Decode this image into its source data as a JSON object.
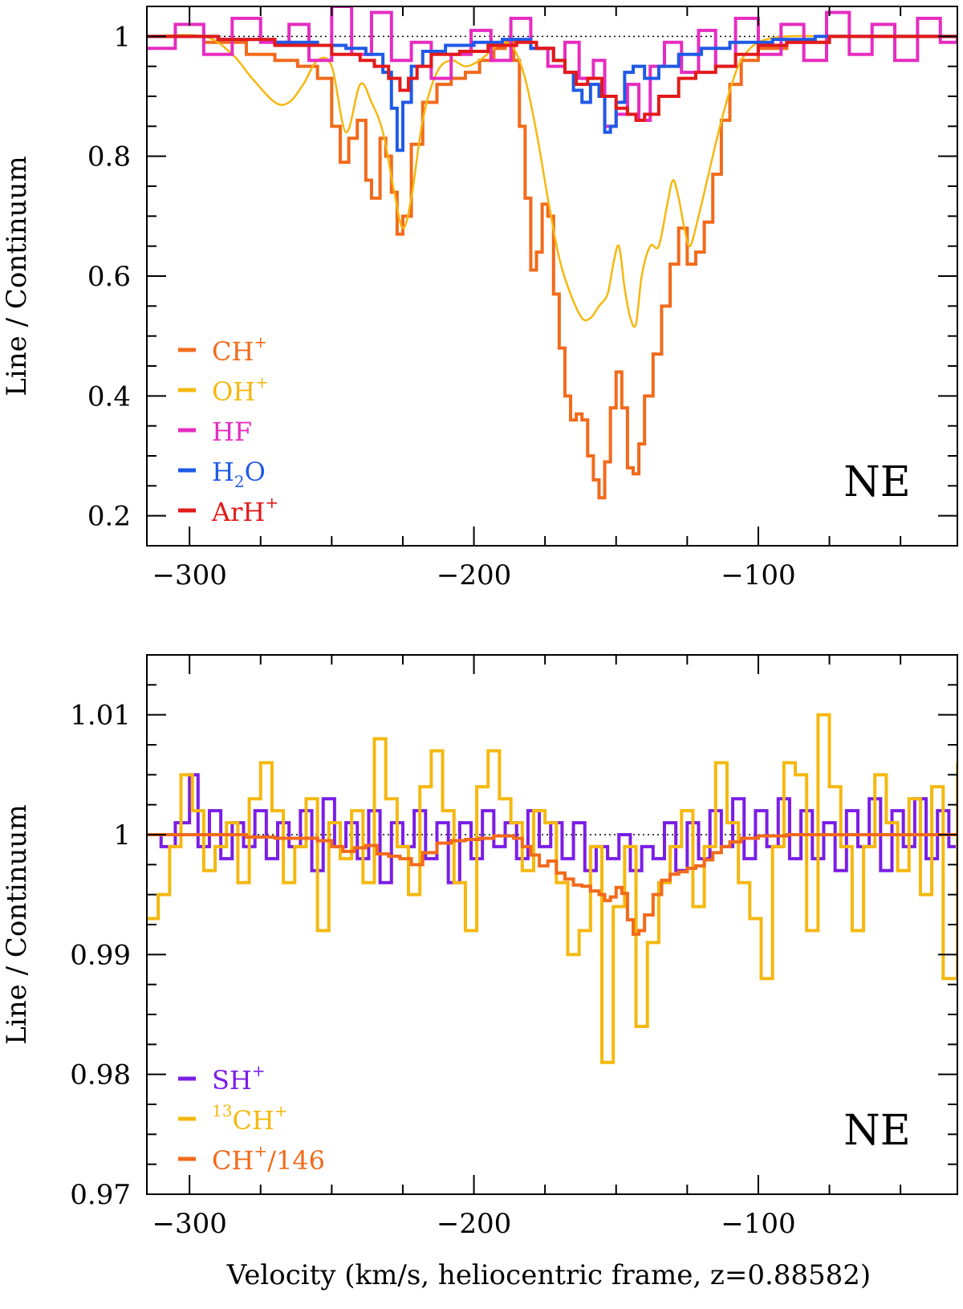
{
  "xlabel": "Velocity (km/s, heliocentric frame, z=0.88582)",
  "colors": {
    "ch_plus": "#f26a1b",
    "oh_plus": "#f5b80f",
    "hf": "#e62cc0",
    "h2o": "#1f5ae6",
    "arh_plus": "#e31a1a",
    "sh_plus": "#7a1ee6",
    "c13h_plus": "#f5b80f",
    "ch_plus_scaled": "#f26a1b",
    "axis": "#000000"
  },
  "chart_data": [
    {
      "type": "line",
      "panel": "top",
      "title": "",
      "label": "NE",
      "xlabel": "",
      "ylabel": "Line / Continuum",
      "xlim": [
        -315,
        -30
      ],
      "ylim": [
        0.15,
        1.05
      ],
      "xticks": [
        -300,
        -200,
        -100
      ],
      "xtick_labels": [
        "−300",
        "−200",
        "−100"
      ],
      "yticks": [
        0.2,
        0.4,
        0.6,
        0.8,
        1.0
      ],
      "ytick_labels": [
        "0.2",
        "0.4",
        "0.6",
        "0.8",
        "1"
      ],
      "reference_line": 1.0,
      "legend_position": "bottom-left",
      "series": [
        {
          "name": "CH+",
          "label_main": "CH",
          "label_sup": "+",
          "color_key": "ch_plus",
          "style": "step",
          "x": [
            -315,
            -295,
            -280,
            -270,
            -262,
            -255,
            -250,
            -247,
            -244,
            -241,
            -238,
            -236,
            -233,
            -231,
            -229,
            -227,
            -225,
            -222,
            -218,
            -213,
            -208,
            -203,
            -198,
            -193,
            -189,
            -186,
            -184,
            -182,
            -180,
            -178,
            -176,
            -174,
            -172,
            -170,
            -168,
            -166,
            -164,
            -162,
            -160,
            -158,
            -156,
            -154,
            -152,
            -150,
            -148,
            -146,
            -144,
            -142,
            -140,
            -137,
            -134,
            -131,
            -128,
            -125,
            -122,
            -119,
            -116,
            -113,
            -110,
            -106,
            -100,
            -90,
            -75,
            -60,
            -45,
            -30
          ],
          "y": [
            1.0,
            0.99,
            0.97,
            0.96,
            0.95,
            0.93,
            0.85,
            0.79,
            0.83,
            0.86,
            0.76,
            0.73,
            0.83,
            0.8,
            0.74,
            0.67,
            0.7,
            0.82,
            0.89,
            0.92,
            0.93,
            0.94,
            0.96,
            0.98,
            0.99,
            0.96,
            0.85,
            0.73,
            0.61,
            0.64,
            0.72,
            0.7,
            0.57,
            0.48,
            0.4,
            0.36,
            0.37,
            0.36,
            0.3,
            0.26,
            0.23,
            0.29,
            0.38,
            0.44,
            0.38,
            0.28,
            0.27,
            0.32,
            0.4,
            0.47,
            0.55,
            0.62,
            0.68,
            0.62,
            0.64,
            0.69,
            0.77,
            0.86,
            0.92,
            0.96,
            0.98,
            0.99,
            1.0,
            1.0,
            1.0,
            1.0
          ]
        },
        {
          "name": "OH+",
          "label_main": "OH",
          "label_sup": "+",
          "color_key": "oh_plus",
          "style": "smooth",
          "x": [
            -315,
            -295,
            -285,
            -278,
            -270,
            -265,
            -260,
            -255,
            -250,
            -245,
            -240,
            -236,
            -232,
            -228,
            -225,
            -222,
            -218,
            -213,
            -208,
            -203,
            -198,
            -193,
            -190,
            -186,
            -182,
            -178,
            -174,
            -170,
            -166,
            -162,
            -159,
            -156,
            -153,
            -151,
            -149,
            -147,
            -145,
            -143,
            -141,
            -138,
            -135,
            -132,
            -130,
            -128,
            -126,
            -124,
            -121,
            -118,
            -114,
            -110,
            -106,
            -100,
            -90,
            -75,
            -50,
            -30
          ],
          "y": [
            1.0,
            1.0,
            0.97,
            0.93,
            0.89,
            0.89,
            0.92,
            0.96,
            0.95,
            0.84,
            0.92,
            0.89,
            0.84,
            0.74,
            0.68,
            0.73,
            0.86,
            0.94,
            0.96,
            0.95,
            0.96,
            0.98,
            0.99,
            0.98,
            0.93,
            0.84,
            0.73,
            0.63,
            0.57,
            0.53,
            0.53,
            0.55,
            0.57,
            0.62,
            0.65,
            0.58,
            0.53,
            0.52,
            0.6,
            0.65,
            0.65,
            0.72,
            0.76,
            0.73,
            0.68,
            0.65,
            0.7,
            0.76,
            0.84,
            0.91,
            0.96,
            0.99,
            1.0,
            1.0,
            1.0,
            1.0
          ]
        },
        {
          "name": "HF",
          "label_main": "HF",
          "label_sup": "",
          "color_key": "hf",
          "style": "step",
          "x": [
            -315,
            -305,
            -295,
            -285,
            -275,
            -265,
            -258,
            -250,
            -243,
            -236,
            -229,
            -222,
            -215,
            -208,
            -201,
            -194,
            -187,
            -180,
            -174,
            -168,
            -163,
            -158,
            -154,
            -150,
            -146,
            -142,
            -138,
            -133,
            -127,
            -121,
            -115,
            -108,
            -100,
            -92,
            -84,
            -76,
            -68,
            -60,
            -52,
            -44,
            -36,
            -30
          ],
          "y": [
            0.98,
            1.02,
            0.97,
            1.03,
            0.99,
            1.02,
            0.96,
            1.05,
            0.97,
            1.04,
            0.96,
            0.99,
            0.93,
            0.97,
            1.01,
            0.96,
            1.03,
            0.98,
            0.95,
            0.99,
            0.93,
            0.96,
            0.85,
            0.87,
            0.92,
            0.86,
            0.95,
            0.99,
            0.94,
            1.01,
            0.95,
            1.03,
            0.97,
            1.02,
            0.96,
            1.04,
            0.97,
            1.02,
            0.96,
            1.03,
            0.99,
            1.0
          ]
        },
        {
          "name": "H2O",
          "label_main": "H",
          "label_sub": "2",
          "label_tail": "O",
          "color_key": "h2o",
          "style": "step",
          "x": [
            -315,
            -290,
            -270,
            -255,
            -245,
            -238,
            -232,
            -229,
            -227,
            -225,
            -222,
            -218,
            -210,
            -200,
            -190,
            -180,
            -172,
            -168,
            -165,
            -162,
            -159,
            -156,
            -154,
            -152,
            -150,
            -147,
            -144,
            -140,
            -135,
            -128,
            -120,
            -110,
            -95,
            -80,
            -60,
            -30
          ],
          "y": [
            1.0,
            0.995,
            0.99,
            0.985,
            0.98,
            0.97,
            0.94,
            0.88,
            0.81,
            0.89,
            0.95,
            0.975,
            0.985,
            0.99,
            0.995,
            0.98,
            0.96,
            0.94,
            0.91,
            0.89,
            0.92,
            0.9,
            0.84,
            0.85,
            0.89,
            0.94,
            0.95,
            0.93,
            0.95,
            0.97,
            0.98,
            0.99,
            0.995,
            1.0,
            1.0,
            1.0
          ]
        },
        {
          "name": "ArH+",
          "label_main": "ArH",
          "label_sup": "+",
          "color_key": "arh_plus",
          "style": "step",
          "x": [
            -315,
            -290,
            -270,
            -250,
            -240,
            -235,
            -230,
            -226,
            -223,
            -220,
            -215,
            -205,
            -195,
            -185,
            -178,
            -172,
            -168,
            -164,
            -160,
            -155,
            -150,
            -146,
            -143,
            -140,
            -135,
            -128,
            -122,
            -115,
            -108,
            -100,
            -90,
            -75,
            -60,
            -30
          ],
          "y": [
            1.0,
            0.995,
            0.985,
            0.97,
            0.96,
            0.95,
            0.93,
            0.91,
            0.93,
            0.95,
            0.97,
            0.975,
            0.985,
            0.99,
            0.98,
            0.96,
            0.94,
            0.92,
            0.93,
            0.9,
            0.88,
            0.87,
            0.86,
            0.87,
            0.9,
            0.93,
            0.94,
            0.95,
            0.97,
            0.985,
            0.99,
            1.0,
            1.0,
            1.0
          ]
        }
      ]
    },
    {
      "type": "line",
      "panel": "bottom",
      "title": "",
      "label": "NE",
      "xlabel": "Velocity (km/s, heliocentric frame, z=0.88582)",
      "ylabel": "Line / Continuum",
      "xlim": [
        -315,
        -30
      ],
      "ylim": [
        0.97,
        1.015
      ],
      "xticks": [
        -300,
        -200,
        -100
      ],
      "xtick_labels": [
        "−300",
        "−200",
        "−100"
      ],
      "yticks": [
        0.97,
        0.98,
        0.99,
        1.0,
        1.01
      ],
      "ytick_labels": [
        "0.97",
        "0.98",
        "0.99",
        "1",
        "1.01"
      ],
      "reference_line": 1.0,
      "legend_position": "bottom-left",
      "series": [
        {
          "name": "SH+",
          "label_main": "SH",
          "label_sup": "+",
          "color_key": "sh_plus",
          "style": "step",
          "x": [
            -315,
            -310,
            -305,
            -300,
            -297,
            -293,
            -289,
            -285,
            -281,
            -277,
            -273,
            -269,
            -265,
            -261,
            -257,
            -253,
            -249,
            -245,
            -241,
            -237,
            -233,
            -229,
            -225,
            -221,
            -217,
            -213,
            -209,
            -205,
            -201,
            -197,
            -193,
            -189,
            -185,
            -181,
            -177,
            -173,
            -169,
            -165,
            -161,
            -157,
            -153,
            -149,
            -145,
            -141,
            -137,
            -133,
            -129,
            -125,
            -121,
            -117,
            -113,
            -109,
            -105,
            -101,
            -97,
            -93,
            -89,
            -85,
            -81,
            -77,
            -73,
            -69,
            -65,
            -61,
            -57,
            -53,
            -49,
            -45,
            -41,
            -37,
            -33,
            -30
          ],
          "y": [
            1.0,
            0.999,
            1.001,
            1.005,
            0.999,
            1.002,
            0.998,
            1.001,
            0.999,
            1.002,
            0.998,
            1.001,
            0.999,
            1.002,
            0.997,
            1.003,
            0.999,
            1.001,
            0.998,
            1.002,
            0.996,
            1.001,
            0.999,
            1.002,
            0.998,
            1.001,
            0.996,
            1.001,
            0.998,
            1.002,
            0.999,
            1.001,
            0.998,
            1.002,
            0.999,
            1.001,
            0.998,
            1.001,
            0.997,
            0.999,
            0.998,
            1.0,
            0.997,
            0.999,
            0.998,
            1.001,
            0.997,
            1.001,
            0.998,
            1.002,
            0.999,
            1.003,
            0.998,
            1.002,
            0.999,
            1.003,
            0.998,
            1.002,
            0.998,
            1.001,
            0.997,
            1.002,
            0.999,
            1.003,
            0.997,
            1.002,
            0.999,
            1.003,
            0.998,
            1.002,
            0.999,
            1.0
          ]
        },
        {
          "name": "13CH+",
          "label_pre": "13",
          "label_main": "CH",
          "label_sup": "+",
          "color_key": "c13h_plus",
          "style": "step",
          "x": [
            -315,
            -311,
            -307,
            -303,
            -299,
            -295,
            -291,
            -287,
            -283,
            -279,
            -275,
            -271,
            -267,
            -263,
            -259,
            -255,
            -251,
            -247,
            -243,
            -239,
            -235,
            -231,
            -227,
            -223,
            -219,
            -215,
            -211,
            -207,
            -203,
            -199,
            -195,
            -191,
            -187,
            -183,
            -179,
            -175,
            -171,
            -167,
            -163,
            -159,
            -155,
            -151,
            -147,
            -143,
            -139,
            -135,
            -131,
            -127,
            -123,
            -119,
            -115,
            -111,
            -107,
            -103,
            -99,
            -95,
            -91,
            -87,
            -83,
            -79,
            -75,
            -71,
            -67,
            -63,
            -59,
            -55,
            -51,
            -47,
            -43,
            -39,
            -35,
            -30
          ],
          "y": [
            0.993,
            0.995,
            0.999,
            1.005,
            1.002,
            0.997,
            0.999,
            1.001,
            0.996,
            1.003,
            1.006,
            1.002,
            0.996,
            0.999,
            1.003,
            0.992,
            1.001,
            0.998,
            1.002,
            0.996,
            1.008,
            1.003,
            0.999,
            0.995,
            1.004,
            1.007,
            1.002,
            0.996,
            0.992,
            1.004,
            1.007,
            1.003,
            1.001,
            0.997,
            1.002,
            1.001,
            0.996,
            0.99,
            0.992,
            0.999,
            0.981,
            0.994,
            0.999,
            0.984,
            0.991,
            0.996,
            0.999,
            1.002,
            0.994,
            0.999,
            1.006,
            1.001,
            0.996,
            0.993,
            0.988,
            0.999,
            1.006,
            1.005,
            0.992,
            1.01,
            1.004,
            0.999,
            0.992,
            0.999,
            1.005,
            1.001,
            0.997,
            1.003,
            0.995,
            1.004,
            0.988,
            1.006
          ]
        },
        {
          "name": "CH+/146",
          "label_main": "CH",
          "label_sup": "+",
          "label_tail": "/146",
          "color_key": "ch_plus_scaled",
          "style": "step",
          "x": [
            -315,
            -295,
            -280,
            -270,
            -262,
            -255,
            -250,
            -246,
            -242,
            -238,
            -234,
            -230,
            -226,
            -222,
            -218,
            -213,
            -208,
            -203,
            -198,
            -193,
            -189,
            -186,
            -183,
            -180,
            -177,
            -174,
            -171,
            -168,
            -165,
            -162,
            -159,
            -156,
            -154,
            -152,
            -150,
            -148,
            -146,
            -144,
            -142,
            -140,
            -137,
            -134,
            -131,
            -128,
            -125,
            -122,
            -119,
            -116,
            -113,
            -110,
            -106,
            -100,
            -90,
            -75,
            -60,
            -45,
            -30
          ],
          "y": [
            1.0,
            1.0,
            0.9998,
            0.9997,
            0.9997,
            0.9995,
            0.999,
            0.9986,
            0.9989,
            0.9991,
            0.9984,
            0.9982,
            0.998,
            0.9975,
            0.9985,
            0.9993,
            0.9995,
            0.9996,
            0.9997,
            0.9999,
            0.9999,
            0.9997,
            0.999,
            0.9983,
            0.9974,
            0.9978,
            0.9968,
            0.9963,
            0.9958,
            0.9957,
            0.9953,
            0.995,
            0.9945,
            0.9948,
            0.9956,
            0.9951,
            0.9929,
            0.9917,
            0.992,
            0.9933,
            0.995,
            0.9962,
            0.9967,
            0.9969,
            0.9972,
            0.9974,
            0.9979,
            0.9985,
            0.999,
            0.9994,
            0.9997,
            0.9999,
            1.0,
            1.0,
            1.0,
            1.0,
            1.0
          ]
        }
      ]
    }
  ]
}
